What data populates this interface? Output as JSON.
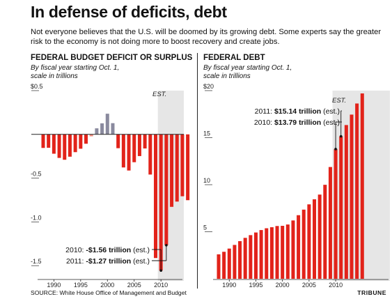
{
  "header": {
    "title": "In defense of deficits, debt",
    "intro": "Not everyone believes that the U.S. will be doomed by its growing debt. Some experts say the greater risk to the economy is not doing more to boost recovery and create jobs."
  },
  "footer": {
    "source": "SOURCE: White House Office of Management and Budget",
    "credit": "TRIBUNE"
  },
  "colors": {
    "deficit": "#e2231a",
    "surplus": "#8a8a9e",
    "transition": "#f08e80",
    "estimate_band": "#e6e6e6"
  },
  "chart_data": [
    {
      "type": "bar",
      "title": "FEDERAL BUDGET DEFICIT OR SURPLUS",
      "subtitle_lines": [
        "By fiscal year starting Oct. 1,",
        "scale in trillions"
      ],
      "x": [
        1988,
        1989,
        1990,
        1991,
        1992,
        1993,
        1994,
        1995,
        1996,
        1997,
        1998,
        1999,
        2000,
        2001,
        2002,
        2003,
        2004,
        2005,
        2006,
        2007,
        2008,
        2009,
        2010,
        2011,
        2012,
        2013,
        2014,
        2015
      ],
      "values": [
        -0.155,
        -0.153,
        -0.221,
        -0.269,
        -0.29,
        -0.255,
        -0.203,
        -0.164,
        -0.107,
        -0.022,
        0.069,
        0.126,
        0.236,
        0.128,
        -0.158,
        -0.378,
        -0.413,
        -0.318,
        -0.248,
        -0.161,
        -0.459,
        -1.413,
        -1.556,
        -1.267,
        -0.828,
        -0.768,
        -0.707,
        -0.752
      ],
      "ylim": [
        -1.65,
        0.5
      ],
      "yticks": [
        0.5,
        -0.5,
        -1.0,
        -1.5
      ],
      "ytick_labels": [
        "$0.5",
        "-0.5",
        "-1.0",
        "-1.5"
      ],
      "xticks": [
        1990,
        1995,
        2000,
        2005,
        2010
      ],
      "estimate_label": "EST.",
      "estimate_from": 2010,
      "annotations": [
        {
          "label": "2010: ",
          "value": "-$1.56 trillion",
          "suffix": " (est.)",
          "year": 2010,
          "y": -1.556
        },
        {
          "label": "2011: ",
          "value": "-$1.27 trillion",
          "suffix": " (est.)",
          "year": 2011,
          "y": -1.267
        }
      ]
    },
    {
      "type": "bar",
      "title": "FEDERAL DEBT",
      "subtitle_lines": [
        "By fiscal year starting Oct. 1,",
        "scale in trillions"
      ],
      "x": [
        1988,
        1989,
        1990,
        1991,
        1992,
        1993,
        1994,
        1995,
        1996,
        1997,
        1998,
        1999,
        2000,
        2001,
        2002,
        2003,
        2004,
        2005,
        2006,
        2007,
        2008,
        2009,
        2010,
        2011,
        2012,
        2013,
        2014,
        2015
      ],
      "values": [
        2.6,
        2.87,
        3.21,
        3.6,
        4.0,
        4.35,
        4.64,
        4.92,
        5.18,
        5.37,
        5.48,
        5.61,
        5.63,
        5.77,
        6.2,
        6.76,
        7.35,
        7.91,
        8.45,
        8.95,
        9.99,
        11.88,
        13.79,
        15.14,
        16.34,
        17.45,
        18.63,
        19.7
      ],
      "ylim": [
        0,
        20
      ],
      "yticks": [
        20,
        15,
        10,
        5
      ],
      "ytick_labels": [
        "$20",
        "15",
        "10",
        "5"
      ],
      "xticks": [
        1990,
        1995,
        2000,
        2005,
        2010
      ],
      "estimate_label": "EST.",
      "estimate_from": 2010,
      "annotations": [
        {
          "label": "2011: ",
          "value": "$15.14 trillion",
          "suffix": " (est.)",
          "year": 2011,
          "y": 15.14
        },
        {
          "label": "2010: ",
          "value": "$13.79 trillion",
          "suffix": " (est.)",
          "year": 2010,
          "y": 13.79
        }
      ]
    }
  ]
}
